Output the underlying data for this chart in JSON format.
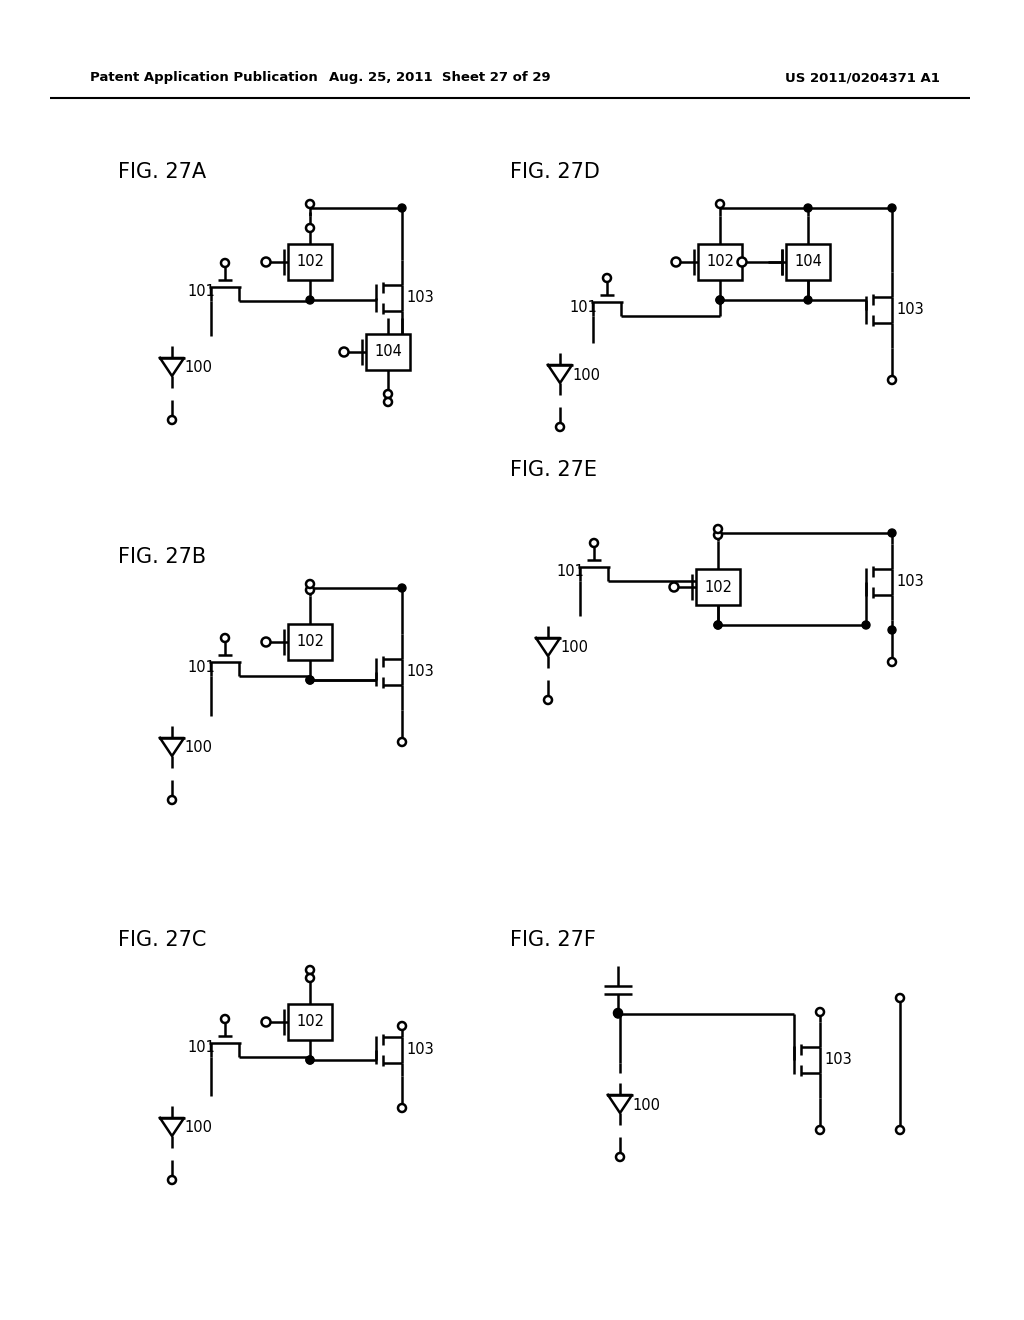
{
  "header_left": "Patent Application Publication",
  "header_mid": "Aug. 25, 2011  Sheet 27 of 29",
  "header_right": "US 2011/0204371 A1",
  "fig_labels": [
    "FIG. 27A",
    "FIG. 27B",
    "FIG. 27C",
    "FIG. 27D",
    "FIG. 27E",
    "FIG. 27F"
  ],
  "bg_color": "#ffffff",
  "line_color": "#000000",
  "lw": 1.8
}
